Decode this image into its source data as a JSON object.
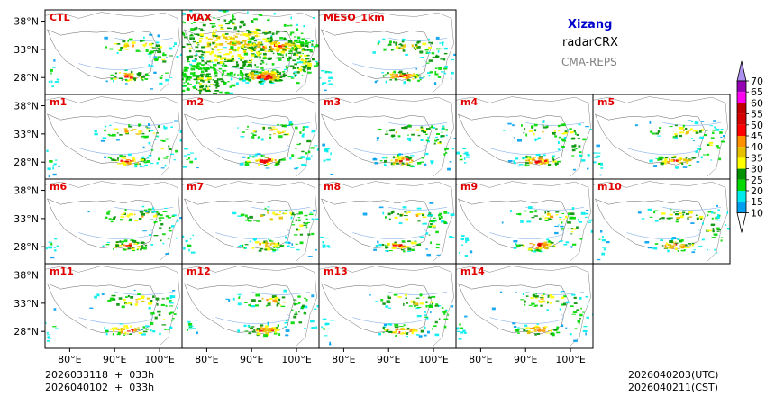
{
  "chart_data": {
    "type": "heatmap",
    "description_title": "Xizang",
    "product": "radarCRX",
    "system": "CMA-REPS",
    "panels": [
      {
        "label": "CTL",
        "row": 0,
        "col": 0
      },
      {
        "label": "MAX",
        "row": 0,
        "col": 1
      },
      {
        "label": "MESO_1km",
        "row": 0,
        "col": 2
      },
      {
        "label": "m1",
        "row": 1,
        "col": 0
      },
      {
        "label": "m2",
        "row": 1,
        "col": 1
      },
      {
        "label": "m3",
        "row": 1,
        "col": 2
      },
      {
        "label": "m4",
        "row": 1,
        "col": 3
      },
      {
        "label": "m5",
        "row": 1,
        "col": 4
      },
      {
        "label": "m6",
        "row": 2,
        "col": 0
      },
      {
        "label": "m7",
        "row": 2,
        "col": 1
      },
      {
        "label": "m8",
        "row": 2,
        "col": 2
      },
      {
        "label": "m9",
        "row": 2,
        "col": 3
      },
      {
        "label": "m10",
        "row": 2,
        "col": 4
      },
      {
        "label": "m11",
        "row": 3,
        "col": 0
      },
      {
        "label": "m12",
        "row": 3,
        "col": 1
      },
      {
        "label": "m13",
        "row": 3,
        "col": 2
      },
      {
        "label": "m14",
        "row": 3,
        "col": 3
      }
    ],
    "lat_ticks": [
      "38°N",
      "33°N",
      "28°N"
    ],
    "lon_ticks": [
      "80°E",
      "90°E",
      "100°E"
    ],
    "lon_range": [
      74.5,
      105
    ],
    "lat_range": [
      25,
      40
    ],
    "colorbar": {
      "levels": [
        10,
        15,
        20,
        25,
        30,
        35,
        40,
        45,
        50,
        55,
        60,
        65,
        70
      ],
      "level_labels": [
        "10",
        "15",
        "20",
        "25",
        "30",
        "35",
        "40",
        "45",
        "50",
        "55",
        "60",
        "65",
        "70"
      ],
      "colors": [
        "#00a0f0",
        "#00ecec",
        "#00d800",
        "#009000",
        "#ffff00",
        "#e7c000",
        "#ff9000",
        "#ff0000",
        "#d60000",
        "#c00000",
        "#ff00f0",
        "#9600b4",
        "#ad90f0"
      ],
      "under_color": "#ffffff",
      "over_color": "#ad90f0"
    },
    "init_time_utc": "2026033118  +  033h",
    "init_time_cst": "2026040102  +  033h",
    "valid_time_utc": "2026040203(UTC)",
    "valid_time_cst": "2026040211(CST)"
  },
  "colors": {
    "title_blue": "#0000cc",
    "panel_label_red": "#e00000",
    "gray_text": "#808080"
  }
}
